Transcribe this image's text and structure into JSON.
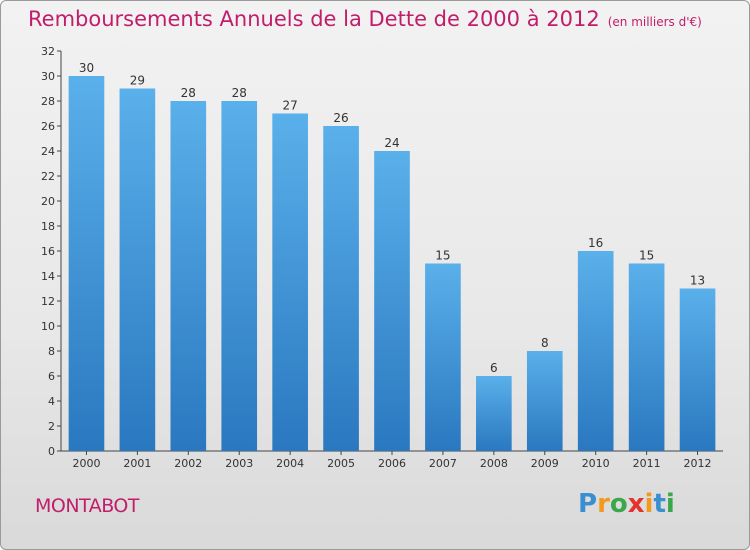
{
  "title": "Remboursements Annuels de la Dette de 2000 à 2012",
  "unit_label": "(en milliers d'€)",
  "town": "MONTABOT",
  "logo_text": "Proxiti",
  "colors": {
    "title": "#c21d6b",
    "bar_light": "#5ab0ea",
    "bar_dark": "#2a78c0"
  },
  "chart_data": {
    "type": "bar",
    "title": "Remboursements Annuels de la Dette de 2000 à 2012",
    "xlabel": "",
    "ylabel": "",
    "ylim": [
      0,
      32
    ],
    "yticks": [
      0,
      2,
      4,
      6,
      8,
      10,
      12,
      14,
      16,
      18,
      20,
      22,
      24,
      26,
      28,
      30,
      32
    ],
    "categories": [
      "2000",
      "2001",
      "2002",
      "2003",
      "2004",
      "2005",
      "2006",
      "2007",
      "2008",
      "2009",
      "2010",
      "2011",
      "2012"
    ],
    "values": [
      30,
      29,
      28,
      28,
      27,
      26,
      24,
      15,
      6,
      8,
      16,
      15,
      13
    ],
    "grid": false
  }
}
